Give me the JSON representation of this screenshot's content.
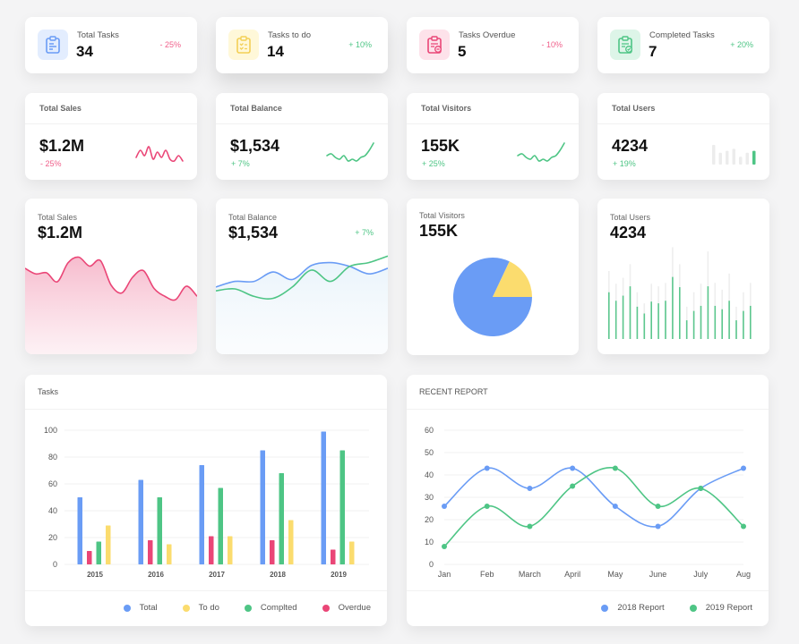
{
  "colors": {
    "blue": "#6a9cf5",
    "yellow": "#fbdc6e",
    "green": "#4ec585",
    "red": "#ea4677",
    "pink_delta": "#f0608b"
  },
  "stats": [
    {
      "label": "Total Tasks",
      "value": "34",
      "delta": "- 25%",
      "trend": "neg",
      "icon": "clipboard-list-icon",
      "icon_bg": "#e3edfe",
      "icon_color": "#6a9cf5"
    },
    {
      "label": "Tasks to do",
      "value": "14",
      "delta": "+ 10%",
      "trend": "pos",
      "icon": "clipboard-checklist-icon",
      "icon_bg": "#fff8d9",
      "icon_color": "#f3cf55"
    },
    {
      "label": "Tasks Overdue",
      "value": "5",
      "delta": "- 10%",
      "trend": "neg",
      "icon": "clipboard-minus-icon",
      "icon_bg": "#fde2ea",
      "icon_color": "#ea4677"
    },
    {
      "label": "Completed Tasks",
      "value": "7",
      "delta": "+ 20%",
      "trend": "pos",
      "icon": "clipboard-check-icon",
      "icon_bg": "#ddf5e8",
      "icon_color": "#4ec585"
    }
  ],
  "sparks": [
    {
      "label": "Total Sales",
      "value": "$1.2M",
      "delta": "- 25%",
      "trend": "neg",
      "kind": "line",
      "color": "#ea4677",
      "points": [
        8,
        4,
        7,
        2,
        9,
        5,
        8,
        4,
        9,
        10,
        7,
        10
      ]
    },
    {
      "label": "Total Balance",
      "value": "$1,534",
      "delta": "+ 7%",
      "trend": "pos",
      "kind": "line",
      "color": "#4ec585",
      "points": [
        7,
        6,
        8,
        9,
        7,
        10,
        9,
        10,
        8,
        7,
        4,
        0
      ]
    },
    {
      "label": "Total Visitors",
      "value": "155K",
      "delta": "+ 25%",
      "trend": "pos",
      "kind": "line",
      "color": "#4ec585",
      "points": [
        7,
        6,
        8,
        9,
        7,
        10,
        9,
        10,
        8,
        7,
        4,
        0
      ]
    },
    {
      "label": "Total Users",
      "value": "4234",
      "delta": "+ 19%",
      "trend": "pos",
      "kind": "bars",
      "color": "#4ec585",
      "points": [
        10,
        6,
        7,
        8,
        4,
        6,
        7
      ]
    }
  ],
  "big": {
    "sales": {
      "label": "Total Sales",
      "value": "$1.2M",
      "series": [
        40,
        35,
        36,
        28,
        45,
        50,
        42,
        47,
        25,
        18,
        32,
        38,
        22,
        15,
        12,
        24,
        15
      ]
    },
    "balance": {
      "label": "Total Balance",
      "value": "$1,534",
      "delta": "+ 7%",
      "blue": [
        22,
        28,
        28,
        38,
        30,
        45,
        48,
        44,
        36,
        42
      ],
      "green": [
        18,
        20,
        12,
        10,
        22,
        40,
        28,
        44,
        48,
        55
      ]
    },
    "visitors": {
      "label": "Total Visitors",
      "value": "155K",
      "pie": [
        {
          "name": "blue",
          "value": 82,
          "color": "#6a9cf5"
        },
        {
          "name": "yellow",
          "value": 18,
          "color": "#fbdc6e"
        }
      ]
    },
    "users": {
      "label": "Total Users",
      "value": "4234",
      "bars": [
        {
          "v": 55,
          "max": 80
        },
        {
          "v": 45,
          "max": 65
        },
        {
          "v": 51,
          "max": 72
        },
        {
          "v": 62,
          "max": 88
        },
        {
          "v": 38,
          "max": 55
        },
        {
          "v": 30,
          "max": 42
        },
        {
          "v": 44,
          "max": 65
        },
        {
          "v": 42,
          "max": 62
        },
        {
          "v": 45,
          "max": 66
        },
        {
          "v": 73,
          "max": 108
        },
        {
          "v": 61,
          "max": 88
        },
        {
          "v": 22,
          "max": 38
        },
        {
          "v": 33,
          "max": 55
        },
        {
          "v": 39,
          "max": 65
        },
        {
          "v": 62,
          "max": 103
        },
        {
          "v": 39,
          "max": 66
        },
        {
          "v": 35,
          "max": 58
        },
        {
          "v": 45,
          "max": 77
        },
        {
          "v": 22,
          "max": 38
        },
        {
          "v": 33,
          "max": 55
        },
        {
          "v": 39,
          "max": 66
        }
      ]
    }
  },
  "tasks_chart": {
    "title": "Tasks",
    "legend": [
      {
        "name": "Total",
        "color": "#6a9cf5"
      },
      {
        "name": "To do",
        "color": "#fbdc6e"
      },
      {
        "name": "Complted",
        "color": "#4ec585"
      },
      {
        "name": "Overdue",
        "color": "#ea4677"
      }
    ]
  },
  "report_chart": {
    "title": "RECENT REPORT",
    "legend": [
      {
        "name": "2018 Report",
        "color": "#6a9cf5"
      },
      {
        "name": "2019 Report",
        "color": "#4ec585"
      }
    ]
  },
  "chart_data": [
    {
      "type": "bar",
      "title": "Tasks",
      "categories": [
        "2015",
        "2016",
        "2017",
        "2018",
        "2019"
      ],
      "series": [
        {
          "name": "Total",
          "color": "#6a9cf5",
          "values": [
            50,
            63,
            74,
            85,
            99
          ]
        },
        {
          "name": "Overdue",
          "color": "#ea4677",
          "values": [
            10,
            18,
            21,
            18,
            11
          ]
        },
        {
          "name": "Complted",
          "color": "#4ec585",
          "values": [
            17,
            50,
            57,
            68,
            85
          ]
        },
        {
          "name": "To do",
          "color": "#fbdc6e",
          "values": [
            29,
            15,
            21,
            33,
            17
          ]
        }
      ],
      "yticks": [
        0,
        20,
        40,
        60,
        80,
        100
      ],
      "ylim": [
        0,
        100
      ],
      "grid": true,
      "legend_position": "bottom-right"
    },
    {
      "type": "line",
      "title": "RECENT REPORT",
      "categories": [
        "Jan",
        "Feb",
        "March",
        "April",
        "May",
        "June",
        "July",
        "Aug"
      ],
      "series": [
        {
          "name": "2018 Report",
          "color": "#6a9cf5",
          "values": [
            26,
            43,
            34,
            43,
            26,
            17,
            34,
            43
          ]
        },
        {
          "name": "2019 Report",
          "color": "#4ec585",
          "values": [
            8,
            26,
            17,
            35,
            43,
            26,
            34,
            17
          ]
        }
      ],
      "yticks": [
        0,
        10,
        20,
        30,
        40,
        50,
        60
      ],
      "ylim": [
        0,
        60
      ],
      "grid": true,
      "legend_position": "bottom-right"
    }
  ]
}
